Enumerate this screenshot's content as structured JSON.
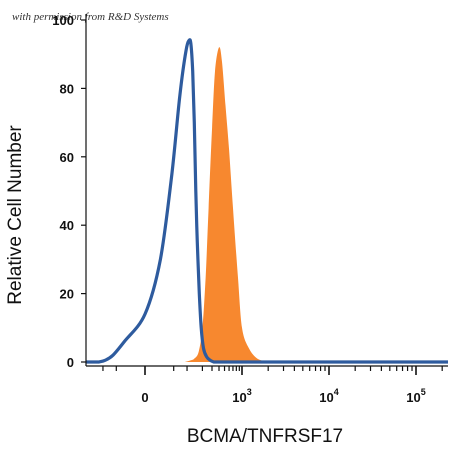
{
  "watermark": "with permission from R&D Systems",
  "chart_data": {
    "type": "area",
    "xlabel": "BCMA/TNFRSF17",
    "ylabel": "Relative Cell Number",
    "xscale": "biexponential",
    "ylim": [
      0,
      100
    ],
    "y_ticks": [
      "0",
      "20",
      "40",
      "60",
      "80",
      "100"
    ],
    "x_ticks": [
      {
        "base": "0",
        "exp": "",
        "value": 0
      },
      {
        "base": "10",
        "exp": "3",
        "value": 1000
      },
      {
        "base": "10",
        "exp": "4",
        "value": 10000
      },
      {
        "base": "10",
        "exp": "5",
        "value": 100000
      }
    ],
    "grid": false,
    "legend": "none",
    "series": [
      {
        "style": "filled",
        "color": "#F7882F",
        "x": [
          90,
          120,
          140,
          170,
          200,
          230,
          260,
          300,
          340,
          400,
          450,
          520,
          600,
          700,
          850,
          1000,
          1200,
          1500,
          2000
        ],
        "y": [
          0,
          0.5,
          1,
          3,
          10,
          25,
          45,
          68,
          85,
          92,
          88,
          75,
          62,
          45,
          25,
          10,
          4,
          1,
          0
        ]
      },
      {
        "style": "line",
        "color": "#2E5B9E",
        "x": [
          -120,
          -90,
          -60,
          -30,
          0,
          20,
          45,
          70,
          95,
          110,
          120,
          130,
          140,
          150,
          160,
          175,
          190,
          210,
          240,
          280,
          320
        ],
        "y": [
          0,
          0.5,
          2,
          6,
          14,
          30,
          55,
          78,
          91,
          94,
          93,
          85,
          70,
          50,
          35,
          20,
          10,
          4,
          1.5,
          0.5,
          0
        ]
      }
    ]
  },
  "colors": {
    "fill": "#F7882F",
    "outline": "#2E5B9E",
    "axis": "#111111"
  }
}
